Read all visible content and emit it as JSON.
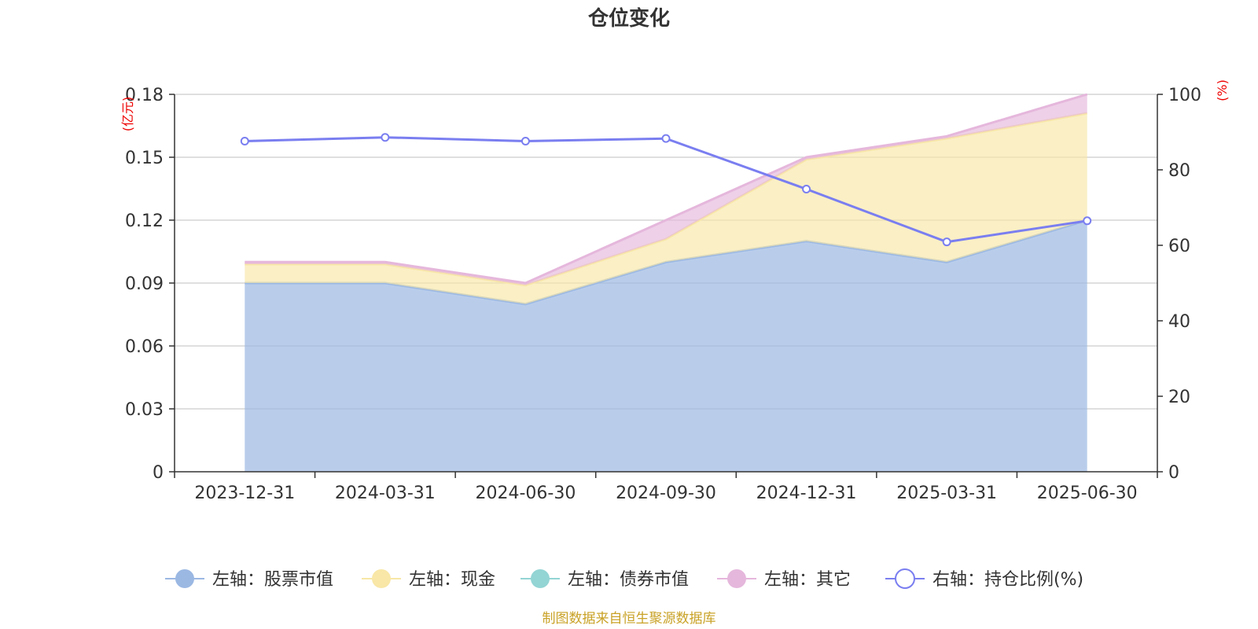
{
  "colors": {
    "stock": "#9bb8e3",
    "cash": "#f8e7a6",
    "bond": "#93d4d4",
    "other": "#e5b7dc",
    "ratio": "#7a7ef0",
    "axis": "#333333",
    "grid": "#cccccc",
    "unit": "#ee0000",
    "source": "#c9a227"
  },
  "chart_data": {
    "type": "area",
    "title": "仓位变化",
    "stacked": true,
    "categories": [
      "2023-12-31",
      "2024-03-31",
      "2024-06-30",
      "2024-09-30",
      "2024-12-31",
      "2025-03-31",
      "2025-06-30"
    ],
    "left_axis": {
      "unit_label": "(亿元)",
      "min": 0,
      "max": 0.18,
      "ticks": [
        "0",
        "0.03",
        "0.06",
        "0.09",
        "0.12",
        "0.15",
        "0.18"
      ]
    },
    "right_axis": {
      "unit_label": "(%)",
      "min": 0,
      "max": 100,
      "ticks": [
        "0",
        "20",
        "40",
        "60",
        "80",
        "100"
      ]
    },
    "series": [
      {
        "name": "左轴：股票市值",
        "axis": "left",
        "values": [
          0.09,
          0.09,
          0.08,
          0.1,
          0.11,
          0.1,
          0.12
        ]
      },
      {
        "name": "左轴：现金",
        "axis": "left",
        "values": [
          0.009,
          0.009,
          0.009,
          0.011,
          0.039,
          0.059,
          0.051
        ]
      },
      {
        "name": "左轴：债券市值",
        "axis": "left",
        "values": [
          0,
          0,
          0,
          0,
          0,
          0,
          0
        ]
      },
      {
        "name": "左轴：其它",
        "axis": "left",
        "values": [
          0.001,
          0.001,
          0.001,
          0.009,
          0.001,
          0.001,
          0.009
        ]
      },
      {
        "name": "右轴：持仓比例(%)",
        "axis": "right",
        "type": "line",
        "values": [
          87.6,
          88.6,
          87.6,
          88.3,
          74.9,
          60.9,
          66.5
        ]
      }
    ],
    "grid": true,
    "legend_position": "bottom-center"
  },
  "footer": {
    "source": "制图数据来自恒生聚源数据库"
  }
}
